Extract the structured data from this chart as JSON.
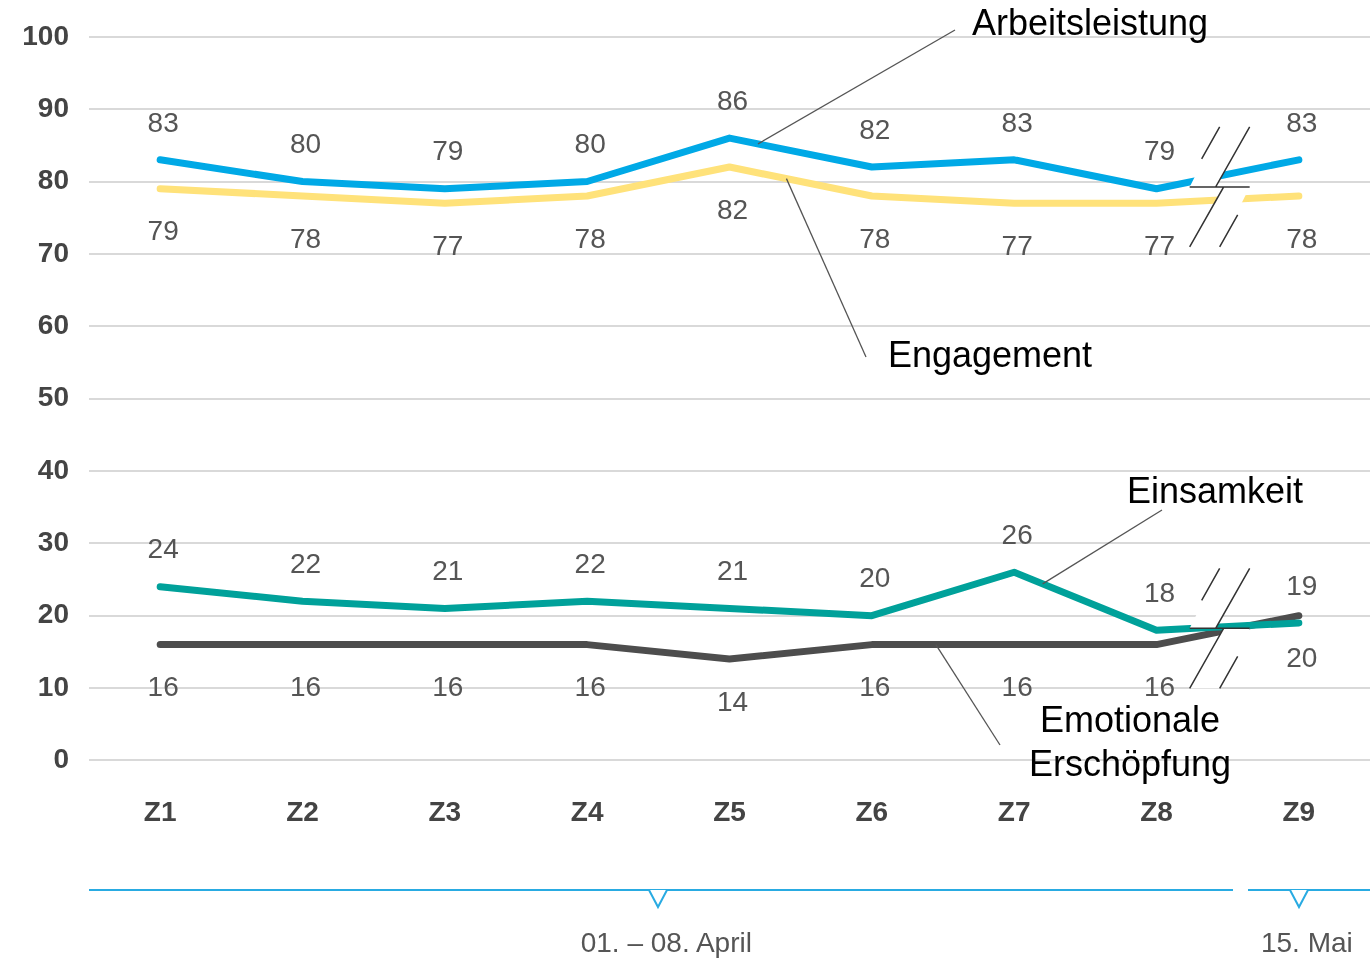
{
  "chart_data": {
    "type": "line",
    "categories": [
      "Z1",
      "Z2",
      "Z3",
      "Z4",
      "Z5",
      "Z6",
      "Z7",
      "Z8",
      "Z9"
    ],
    "series": [
      {
        "name": "Arbeitsleistung",
        "color": "#00a9e6",
        "values": [
          83,
          80,
          79,
          80,
          86,
          82,
          83,
          79,
          83
        ]
      },
      {
        "name": "Engagement",
        "color": "#ffe27a",
        "values": [
          79,
          78,
          77,
          78,
          82,
          78,
          77,
          77,
          78
        ]
      },
      {
        "name": "Einsamkeit",
        "color": "#00a19a",
        "values": [
          24,
          22,
          21,
          22,
          21,
          20,
          26,
          18,
          19
        ]
      },
      {
        "name": "Emotionale Erschöpfung",
        "color": "#4d4d4d",
        "values": [
          16,
          16,
          16,
          16,
          14,
          16,
          16,
          16,
          20
        ]
      }
    ],
    "ylim": [
      0,
      100
    ],
    "yticks": [
      0,
      10,
      20,
      30,
      40,
      50,
      60,
      70,
      80,
      90,
      100
    ],
    "grid": "y",
    "legend": false,
    "marker": "none",
    "line_style": "solid",
    "data_labels": true,
    "annotations": [
      "01. – 08. April",
      "15. Mai"
    ]
  }
}
